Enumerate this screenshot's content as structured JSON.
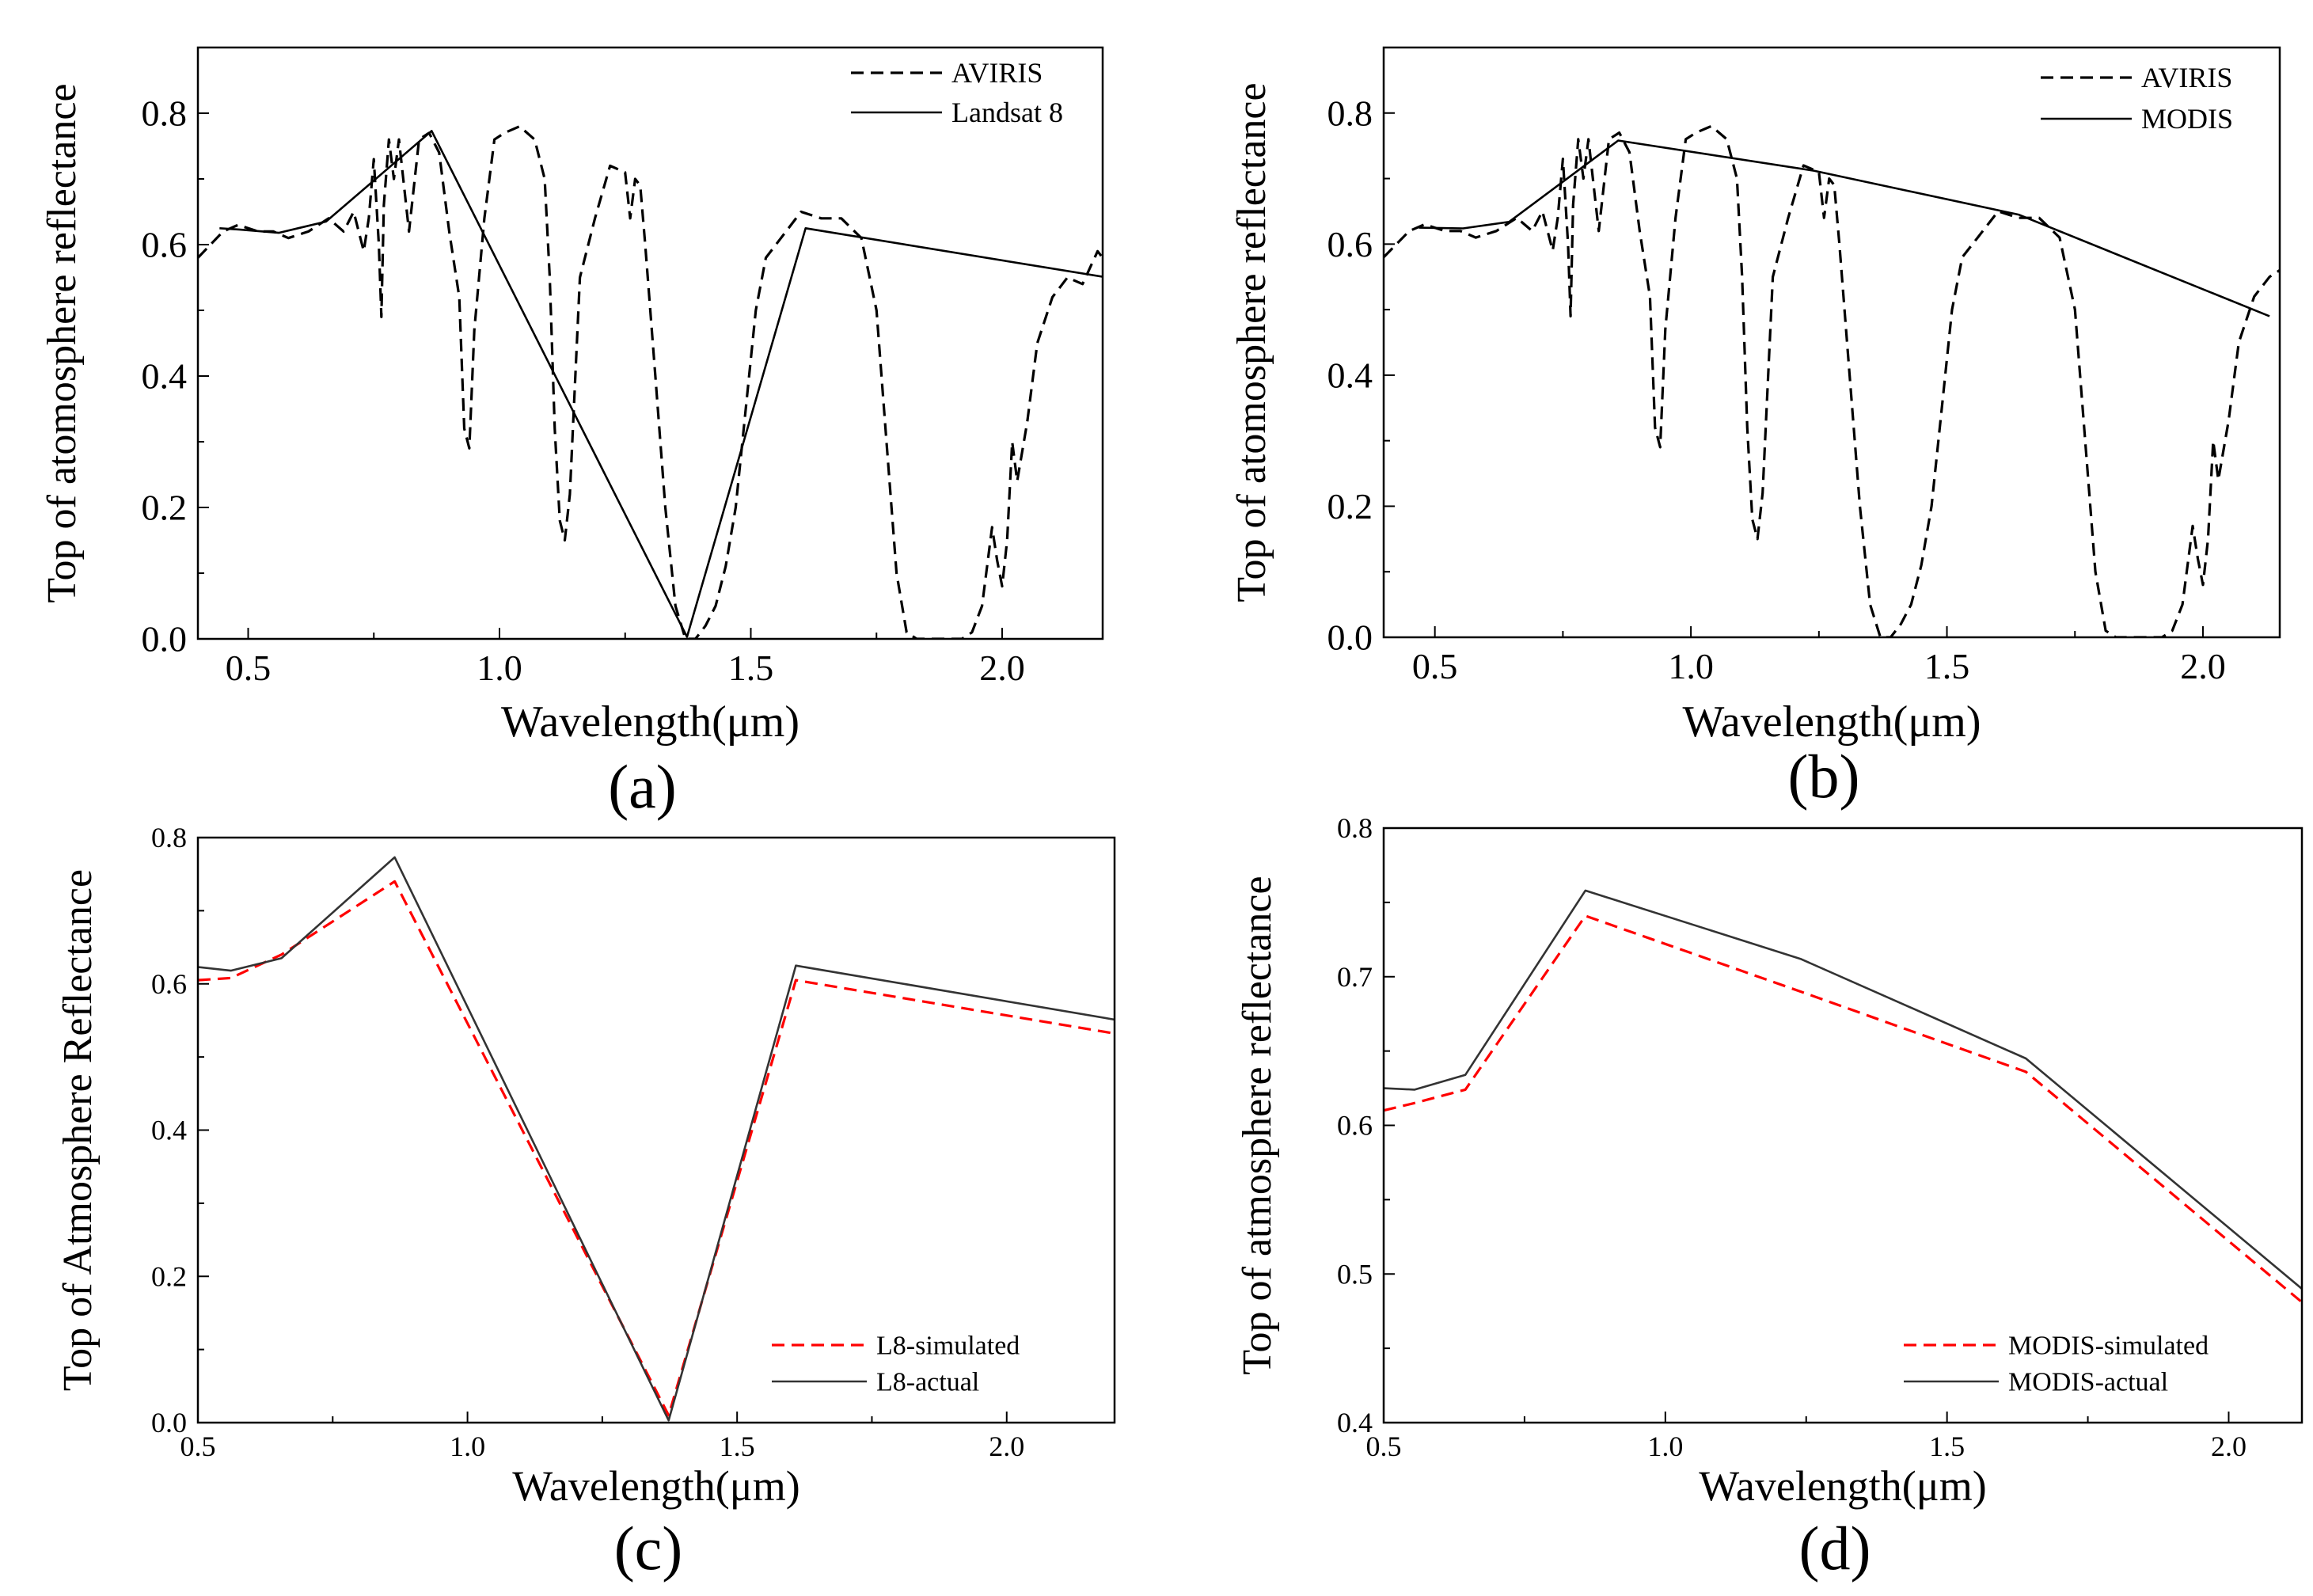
{
  "figure": {
    "panels": [
      "(a)",
      "(b)",
      "(c)",
      "(d)"
    ]
  },
  "chart_data": [
    {
      "id": "a",
      "type": "line",
      "panel_label": "(a)",
      "xlabel": "Wavelength(μm)",
      "ylabel": "Top of atomosphere reflectance",
      "xlim": [
        0.4,
        2.2
      ],
      "ylim": [
        0.0,
        0.9
      ],
      "xticks": [
        "0.5",
        "1.0",
        "1.5",
        "2.0"
      ],
      "xtick_values": [
        0.5,
        1.0,
        1.5,
        2.0
      ],
      "yticks": [
        "0.0",
        "0.2",
        "0.4",
        "0.6",
        "0.8"
      ],
      "ytick_values": [
        0.0,
        0.2,
        0.4,
        0.6,
        0.8
      ],
      "legend_position": "top-right",
      "series": [
        {
          "name": "AVIRIS",
          "style": "dashed",
          "color": "#000000",
          "x": [
            0.4,
            0.45,
            0.48,
            0.52,
            0.55,
            0.58,
            0.62,
            0.66,
            0.69,
            0.71,
            0.73,
            0.74,
            0.75,
            0.76,
            0.765,
            0.77,
            0.78,
            0.79,
            0.8,
            0.82,
            0.84,
            0.86,
            0.88,
            0.9,
            0.92,
            0.93,
            0.94,
            0.95,
            0.97,
            0.99,
            1.01,
            1.04,
            1.07,
            1.09,
            1.1,
            1.11,
            1.12,
            1.13,
            1.14,
            1.16,
            1.19,
            1.22,
            1.25,
            1.26,
            1.27,
            1.28,
            1.29,
            1.31,
            1.33,
            1.35,
            1.37,
            1.39,
            1.41,
            1.43,
            1.45,
            1.47,
            1.49,
            1.51,
            1.53,
            1.56,
            1.6,
            1.64,
            1.68,
            1.72,
            1.75,
            1.77,
            1.79,
            1.81,
            1.83,
            1.86,
            1.89,
            1.92,
            1.94,
            1.96,
            1.98,
            1.99,
            2.0,
            2.01,
            2.02,
            2.03,
            2.05,
            2.07,
            2.1,
            2.13,
            2.16,
            2.19,
            2.2
          ],
          "y": [
            0.58,
            0.62,
            0.63,
            0.62,
            0.62,
            0.61,
            0.62,
            0.64,
            0.62,
            0.65,
            0.59,
            0.64,
            0.73,
            0.6,
            0.49,
            0.66,
            0.76,
            0.7,
            0.76,
            0.62,
            0.76,
            0.77,
            0.74,
            0.62,
            0.52,
            0.32,
            0.29,
            0.47,
            0.64,
            0.76,
            0.77,
            0.78,
            0.76,
            0.7,
            0.55,
            0.32,
            0.18,
            0.15,
            0.22,
            0.55,
            0.64,
            0.72,
            0.71,
            0.64,
            0.7,
            0.69,
            0.6,
            0.4,
            0.2,
            0.05,
            0.0,
            0.0,
            0.02,
            0.05,
            0.11,
            0.2,
            0.35,
            0.5,
            0.58,
            0.61,
            0.65,
            0.64,
            0.64,
            0.61,
            0.5,
            0.3,
            0.1,
            0.01,
            0.0,
            0.0,
            0.0,
            0.0,
            0.01,
            0.05,
            0.17,
            0.12,
            0.08,
            0.15,
            0.3,
            0.24,
            0.33,
            0.45,
            0.52,
            0.55,
            0.54,
            0.59,
            0.58
          ]
        },
        {
          "name": "Landsat 8",
          "style": "solid",
          "color": "#000000",
          "x": [
            0.443,
            0.482,
            0.561,
            0.655,
            0.865,
            1.373,
            1.609,
            2.201
          ],
          "y": [
            0.625,
            0.623,
            0.618,
            0.635,
            0.773,
            0.003,
            0.625,
            0.551
          ]
        }
      ]
    },
    {
      "id": "b",
      "type": "line",
      "panel_label": "(b)",
      "xlabel": "Wavelength(μm)",
      "ylabel": "Top of atomosphere reflectance",
      "xlim": [
        0.4,
        2.15
      ],
      "ylim": [
        0.0,
        0.9
      ],
      "xticks": [
        "0.5",
        "1.0",
        "1.5",
        "2.0"
      ],
      "xtick_values": [
        0.5,
        1.0,
        1.5,
        2.0
      ],
      "yticks": [
        "0.0",
        "0.2",
        "0.4",
        "0.6",
        "0.8"
      ],
      "ytick_values": [
        0.0,
        0.2,
        0.4,
        0.6,
        0.8
      ],
      "legend_position": "top-right",
      "series": [
        {
          "name": "AVIRIS",
          "style": "dashed",
          "color": "#000000",
          "x": [
            0.4,
            0.45,
            0.48,
            0.52,
            0.55,
            0.58,
            0.62,
            0.66,
            0.69,
            0.71,
            0.73,
            0.74,
            0.75,
            0.76,
            0.765,
            0.77,
            0.78,
            0.79,
            0.8,
            0.82,
            0.84,
            0.86,
            0.88,
            0.9,
            0.92,
            0.93,
            0.94,
            0.95,
            0.97,
            0.99,
            1.01,
            1.04,
            1.07,
            1.09,
            1.1,
            1.11,
            1.12,
            1.13,
            1.14,
            1.16,
            1.19,
            1.22,
            1.25,
            1.26,
            1.27,
            1.28,
            1.29,
            1.31,
            1.33,
            1.35,
            1.37,
            1.39,
            1.41,
            1.43,
            1.45,
            1.47,
            1.49,
            1.51,
            1.53,
            1.56,
            1.6,
            1.64,
            1.68,
            1.72,
            1.75,
            1.77,
            1.79,
            1.81,
            1.83,
            1.86,
            1.89,
            1.92,
            1.94,
            1.96,
            1.98,
            1.99,
            2.0,
            2.01,
            2.02,
            2.03,
            2.05,
            2.07,
            2.1,
            2.13,
            2.15
          ],
          "y": [
            0.58,
            0.62,
            0.63,
            0.62,
            0.62,
            0.61,
            0.62,
            0.64,
            0.62,
            0.65,
            0.59,
            0.64,
            0.73,
            0.6,
            0.49,
            0.66,
            0.76,
            0.7,
            0.76,
            0.62,
            0.76,
            0.77,
            0.74,
            0.62,
            0.52,
            0.32,
            0.29,
            0.47,
            0.64,
            0.76,
            0.77,
            0.78,
            0.76,
            0.7,
            0.55,
            0.32,
            0.18,
            0.15,
            0.22,
            0.55,
            0.64,
            0.72,
            0.71,
            0.64,
            0.7,
            0.69,
            0.6,
            0.4,
            0.2,
            0.05,
            0.0,
            0.0,
            0.02,
            0.05,
            0.11,
            0.2,
            0.35,
            0.5,
            0.58,
            0.61,
            0.65,
            0.64,
            0.64,
            0.61,
            0.5,
            0.3,
            0.1,
            0.01,
            0.0,
            0.0,
            0.0,
            0.0,
            0.01,
            0.05,
            0.17,
            0.12,
            0.08,
            0.15,
            0.3,
            0.24,
            0.33,
            0.45,
            0.52,
            0.55,
            0.56
          ]
        },
        {
          "name": "MODIS",
          "style": "solid",
          "color": "#000000",
          "x": [
            0.469,
            0.555,
            0.645,
            0.858,
            1.24,
            1.64,
            2.13
          ],
          "y": [
            0.625,
            0.624,
            0.634,
            0.758,
            0.712,
            0.645,
            0.49
          ]
        }
      ]
    },
    {
      "id": "c",
      "type": "line",
      "panel_label": "(c)",
      "xlabel": "Wavelength(μm)",
      "ylabel": "Top of Atmosphere Reflectance",
      "xlim": [
        0.5,
        2.2
      ],
      "ylim": [
        0.0,
        0.8
      ],
      "xticks": [
        "0.5",
        "1.0",
        "1.5",
        "2.0"
      ],
      "xtick_values": [
        0.5,
        1.0,
        1.5,
        2.0
      ],
      "yticks": [
        "0.0",
        "0.2",
        "0.4",
        "0.6",
        "0.8"
      ],
      "ytick_values": [
        0.0,
        0.2,
        0.4,
        0.6,
        0.8
      ],
      "legend_position": "bottom-right",
      "series": [
        {
          "name": "L8-simulated",
          "style": "dashed",
          "color": "#ff0000",
          "x": [
            0.5,
            0.561,
            0.655,
            0.865,
            1.373,
            1.609,
            2.201
          ],
          "y": [
            0.605,
            0.608,
            0.64,
            0.74,
            0.01,
            0.605,
            0.532
          ]
        },
        {
          "name": "L8-actual",
          "style": "solid",
          "color": "#333333",
          "x": [
            0.5,
            0.561,
            0.655,
            0.865,
            1.373,
            1.609,
            2.201
          ],
          "y": [
            0.623,
            0.618,
            0.635,
            0.773,
            0.003,
            0.625,
            0.551
          ]
        }
      ]
    },
    {
      "id": "d",
      "type": "line",
      "panel_label": "(d)",
      "xlabel": "Wavelength(μm)",
      "ylabel": "Top of atmosphere reflectance",
      "xlim": [
        0.5,
        2.13
      ],
      "ylim": [
        0.4,
        0.8
      ],
      "xticks": [
        "0.5",
        "1.0",
        "1.5",
        "2.0"
      ],
      "xtick_values": [
        0.5,
        1.0,
        1.5,
        2.0
      ],
      "yticks": [
        "0.4",
        "0.5",
        "0.6",
        "0.7",
        "0.8"
      ],
      "ytick_values": [
        0.4,
        0.5,
        0.6,
        0.7,
        0.8
      ],
      "legend_position": "bottom-right",
      "series": [
        {
          "name": "MODIS-simulated",
          "style": "dashed",
          "color": "#ff0000",
          "x": [
            0.5,
            0.555,
            0.645,
            0.858,
            1.24,
            1.64,
            2.13
          ],
          "y": [
            0.61,
            0.615,
            0.624,
            0.741,
            0.69,
            0.636,
            0.481
          ]
        },
        {
          "name": "MODIS-actual",
          "style": "solid",
          "color": "#333333",
          "x": [
            0.5,
            0.555,
            0.645,
            0.858,
            1.24,
            1.64,
            2.13
          ],
          "y": [
            0.625,
            0.624,
            0.634,
            0.758,
            0.712,
            0.645,
            0.49
          ]
        }
      ]
    }
  ]
}
